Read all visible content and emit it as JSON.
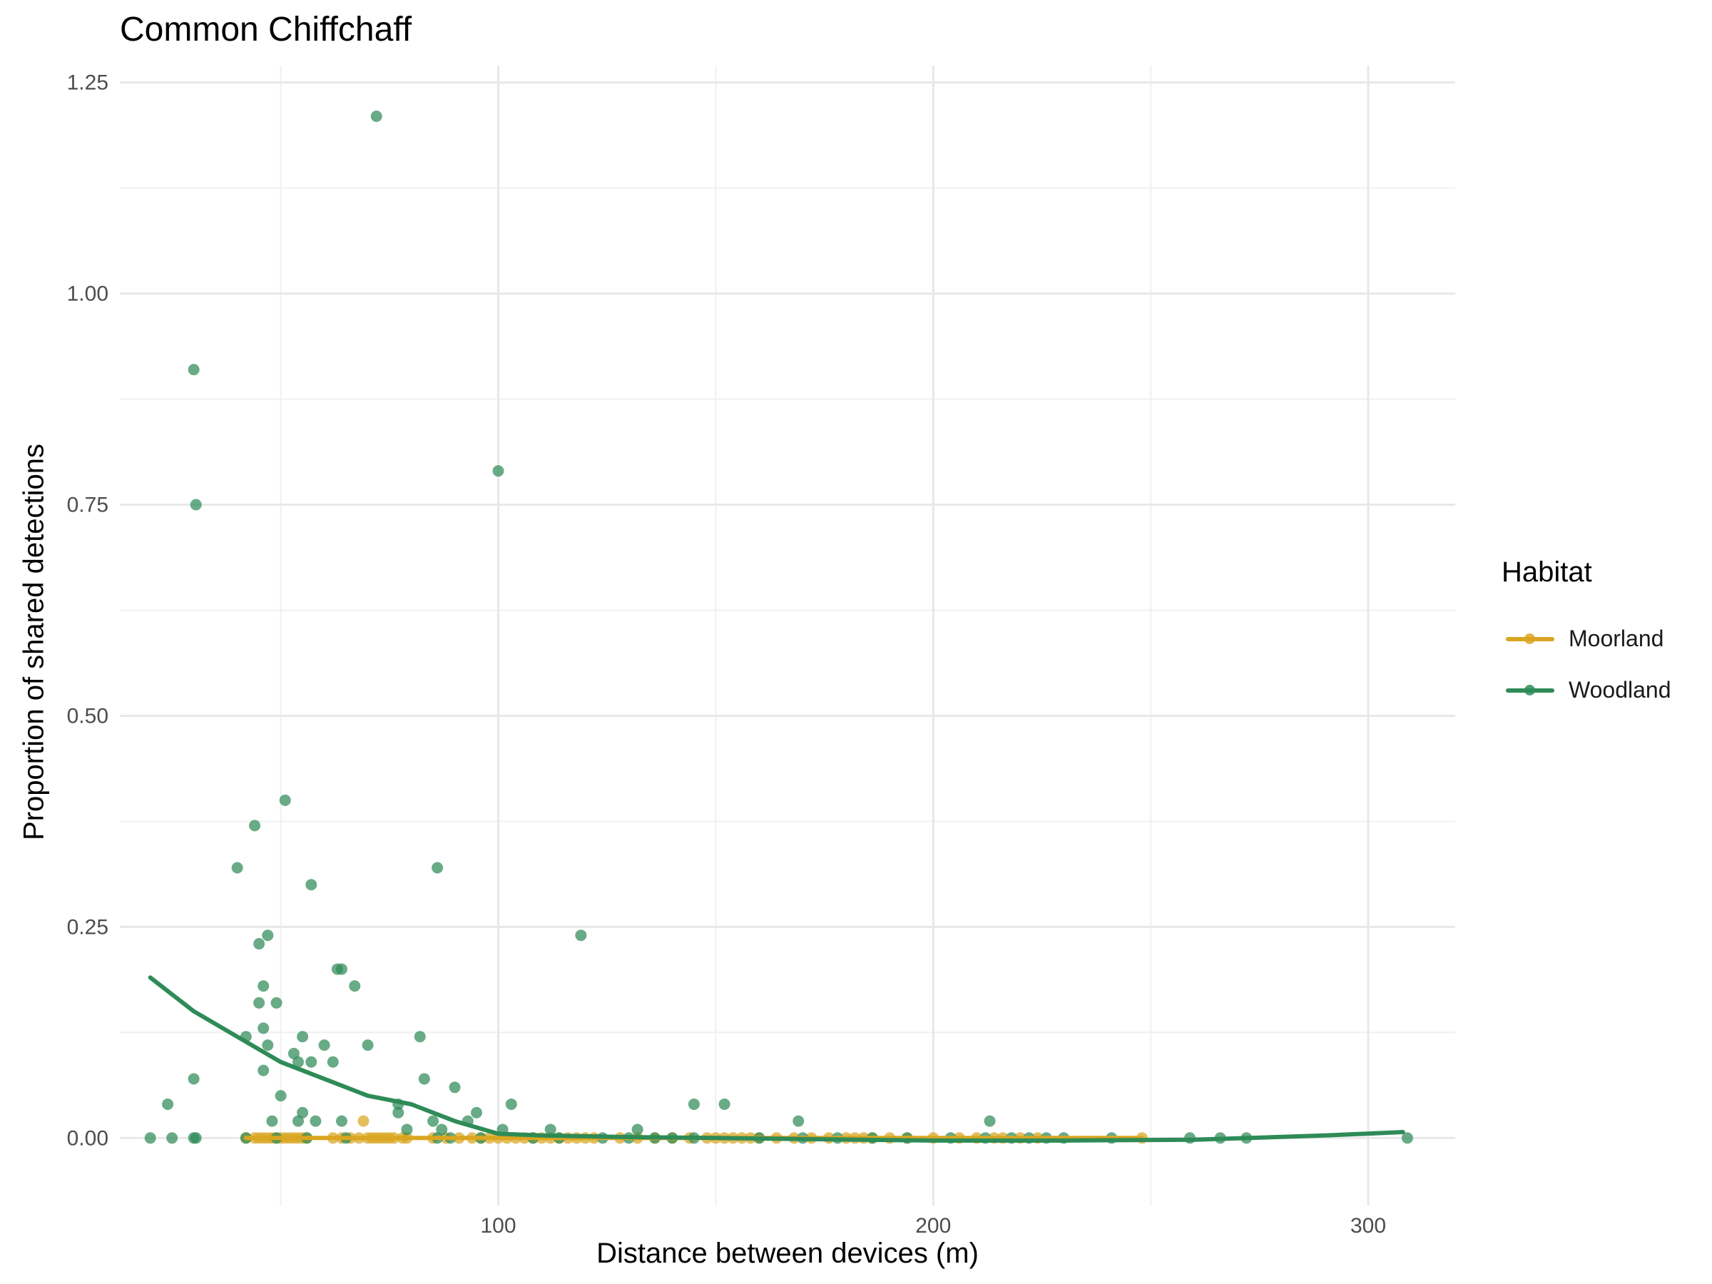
{
  "chart_data": {
    "type": "scatter",
    "title": "Common Chiffchaff",
    "xlabel": "Distance between devices (m)",
    "ylabel": "Proportion of shared detections",
    "xlim": [
      13,
      320
    ],
    "ylim": [
      -0.08,
      1.27
    ],
    "x_ticks": [
      100,
      200,
      300
    ],
    "x_tick_labels": [
      "100",
      "200",
      "300"
    ],
    "y_ticks": [
      0,
      0.25,
      0.5,
      0.75,
      1.0,
      1.25
    ],
    "y_tick_labels": [
      "0.00",
      "0.25",
      "0.50",
      "0.75",
      "1.00",
      "1.25"
    ],
    "grid": true,
    "legend": {
      "title": "Habitat",
      "position": "right"
    },
    "series": [
      {
        "name": "Moorland",
        "color": "#DAA520",
        "points": [
          [
            42,
            0
          ],
          [
            44,
            0
          ],
          [
            45,
            0
          ],
          [
            46,
            0
          ],
          [
            47,
            0
          ],
          [
            48,
            0
          ],
          [
            49,
            0
          ],
          [
            50,
            0
          ],
          [
            51,
            0
          ],
          [
            52,
            0
          ],
          [
            53,
            0
          ],
          [
            54,
            0
          ],
          [
            55,
            0
          ],
          [
            56,
            0
          ],
          [
            62,
            0
          ],
          [
            64,
            0
          ],
          [
            66,
            0
          ],
          [
            68,
            0
          ],
          [
            69,
            0.02
          ],
          [
            70,
            0
          ],
          [
            71,
            0
          ],
          [
            72,
            0
          ],
          [
            73,
            0
          ],
          [
            74,
            0
          ],
          [
            75,
            0
          ],
          [
            76,
            0
          ],
          [
            78,
            0
          ],
          [
            79,
            0
          ],
          [
            85,
            0
          ],
          [
            88,
            0
          ],
          [
            91,
            0
          ],
          [
            94,
            0
          ],
          [
            96,
            0
          ],
          [
            98,
            0
          ],
          [
            100,
            0
          ],
          [
            102,
            0
          ],
          [
            104,
            0
          ],
          [
            106,
            0
          ],
          [
            108,
            0
          ],
          [
            110,
            0
          ],
          [
            112,
            0
          ],
          [
            114,
            0
          ],
          [
            116,
            0
          ],
          [
            118,
            0
          ],
          [
            120,
            0
          ],
          [
            122,
            0
          ],
          [
            128,
            0
          ],
          [
            132,
            0
          ],
          [
            136,
            0
          ],
          [
            140,
            0
          ],
          [
            144,
            0
          ],
          [
            148,
            0
          ],
          [
            150,
            0
          ],
          [
            152,
            0
          ],
          [
            154,
            0
          ],
          [
            156,
            0
          ],
          [
            158,
            0
          ],
          [
            160,
            0
          ],
          [
            164,
            0
          ],
          [
            168,
            0
          ],
          [
            172,
            0
          ],
          [
            176,
            0
          ],
          [
            180,
            0
          ],
          [
            182,
            0
          ],
          [
            184,
            0
          ],
          [
            186,
            0
          ],
          [
            190,
            0
          ],
          [
            194,
            0
          ],
          [
            200,
            0
          ],
          [
            206,
            0
          ],
          [
            210,
            0
          ],
          [
            214,
            0
          ],
          [
            216,
            0
          ],
          [
            220,
            0
          ],
          [
            224,
            0
          ],
          [
            248,
            0
          ]
        ],
        "trend": [
          [
            42,
            0
          ],
          [
            100,
            0
          ],
          [
            150,
            0
          ],
          [
            200,
            0
          ],
          [
            248,
            0
          ]
        ]
      },
      {
        "name": "Woodland",
        "color": "#2E8B57",
        "points": [
          [
            72,
            1.21
          ],
          [
            30,
            0.91
          ],
          [
            30.5,
            0.75
          ],
          [
            100,
            0.79
          ],
          [
            51,
            0.4
          ],
          [
            44,
            0.37
          ],
          [
            40,
            0.32
          ],
          [
            86,
            0.32
          ],
          [
            57,
            0.3
          ],
          [
            119,
            0.24
          ],
          [
            47,
            0.24
          ],
          [
            45,
            0.23
          ],
          [
            63,
            0.2
          ],
          [
            64,
            0.2
          ],
          [
            67,
            0.18
          ],
          [
            46,
            0.18
          ],
          [
            45,
            0.16
          ],
          [
            49,
            0.16
          ],
          [
            46,
            0.13
          ],
          [
            55,
            0.12
          ],
          [
            42,
            0.12
          ],
          [
            82,
            0.12
          ],
          [
            60,
            0.11
          ],
          [
            47,
            0.11
          ],
          [
            70,
            0.11
          ],
          [
            53,
            0.1
          ],
          [
            54,
            0.09
          ],
          [
            57,
            0.09
          ],
          [
            62,
            0.09
          ],
          [
            46,
            0.08
          ],
          [
            50,
            0.05
          ],
          [
            30,
            0.07
          ],
          [
            83,
            0.07
          ],
          [
            90,
            0.06
          ],
          [
            103,
            0.04
          ],
          [
            145,
            0.04
          ],
          [
            152,
            0.04
          ],
          [
            24,
            0.04
          ],
          [
            77,
            0.04
          ],
          [
            95,
            0.03
          ],
          [
            55,
            0.03
          ],
          [
            77,
            0.03
          ],
          [
            48,
            0.02
          ],
          [
            54,
            0.02
          ],
          [
            58,
            0.02
          ],
          [
            64,
            0.02
          ],
          [
            79,
            0.01
          ],
          [
            85,
            0.02
          ],
          [
            87,
            0.01
          ],
          [
            93,
            0.02
          ],
          [
            101,
            0.01
          ],
          [
            169,
            0.02
          ],
          [
            213,
            0.02
          ],
          [
            132,
            0.01
          ],
          [
            112,
            0.01
          ],
          [
            20,
            0
          ],
          [
            25,
            0
          ],
          [
            30,
            0
          ],
          [
            30.5,
            0
          ],
          [
            42,
            0
          ],
          [
            49,
            0
          ],
          [
            56,
            0
          ],
          [
            65,
            0
          ],
          [
            86,
            0
          ],
          [
            89,
            0
          ],
          [
            96,
            0
          ],
          [
            108,
            0
          ],
          [
            114,
            0
          ],
          [
            124,
            0
          ],
          [
            130,
            0
          ],
          [
            136,
            0
          ],
          [
            140,
            0
          ],
          [
            145,
            0
          ],
          [
            160,
            0
          ],
          [
            170,
            0
          ],
          [
            178,
            0
          ],
          [
            186,
            0
          ],
          [
            194,
            0
          ],
          [
            204,
            0
          ],
          [
            212,
            0
          ],
          [
            218,
            0
          ],
          [
            222,
            0
          ],
          [
            226,
            0
          ],
          [
            230,
            0
          ],
          [
            241,
            0
          ],
          [
            259,
            0
          ],
          [
            266,
            0
          ],
          [
            272,
            0
          ],
          [
            309,
            0
          ]
        ],
        "trend": [
          [
            20,
            0.19
          ],
          [
            30,
            0.15
          ],
          [
            40,
            0.12
          ],
          [
            50,
            0.09
          ],
          [
            60,
            0.07
          ],
          [
            70,
            0.05
          ],
          [
            80,
            0.04
          ],
          [
            90,
            0.02
          ],
          [
            100,
            0.005
          ],
          [
            110,
            0.003
          ],
          [
            120,
            0.002
          ],
          [
            130,
            0.001
          ],
          [
            150,
            0.0
          ],
          [
            200,
            -0.003
          ],
          [
            230,
            -0.003
          ],
          [
            260,
            -0.002
          ],
          [
            290,
            0.003
          ],
          [
            308,
            0.007
          ]
        ]
      }
    ]
  }
}
